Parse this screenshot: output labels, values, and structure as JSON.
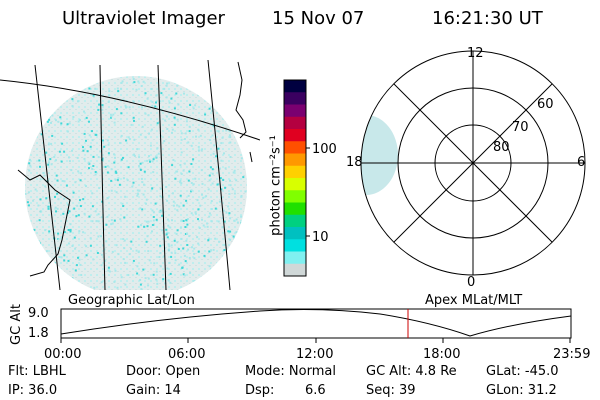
{
  "header": {
    "instrument": "Ultraviolet Imager",
    "date": "15 Nov 07",
    "time": "16:21:30 UT"
  },
  "colorbar": {
    "unit_label": "photon cm⁻²s⁻¹",
    "ticks": [
      "100",
      "10"
    ],
    "colors": [
      "#000040",
      "#3a0060",
      "#7a0070",
      "#b40040",
      "#e00020",
      "#ff5000",
      "#ff9800",
      "#ffd000",
      "#d8ff00",
      "#80ff00",
      "#20e000",
      "#00d080",
      "#00c0c0",
      "#00e0e0",
      "#80f0f0",
      "#d0d8d8"
    ]
  },
  "polar": {
    "mlt_labels": {
      "top": "12",
      "bottom": "0",
      "left": "18",
      "right": "6"
    },
    "lat_labels": [
      "60",
      "70",
      "80"
    ]
  },
  "timeline": {
    "left_label": "Geographic Lat/Lon",
    "right_label": "Apex MLat/MLT",
    "y_axis_label": "GC Alt",
    "y_ticks": [
      "9.0",
      "1.8"
    ],
    "x_ticks": [
      "00:00",
      "06:00",
      "12:00",
      "18:00",
      "23:59"
    ],
    "marker_color": "#cc0000"
  },
  "footer": {
    "filter": "Flt: LBHL",
    "ip": "IP: 36.0",
    "door": "Door: Open",
    "gain": "Gain: 14",
    "mode": "Mode: Normal",
    "dsp_label": "Dsp:",
    "dsp_value": "6.6",
    "gc_alt": "GC Alt: 4.8 Re",
    "seq": "Seq: 39",
    "glat": "GLat: -45.0",
    "glon": "GLon:  31.2"
  }
}
